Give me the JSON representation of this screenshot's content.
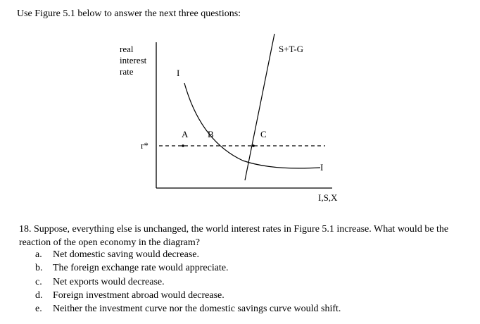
{
  "intro": "Use Figure 5.1 below to answer the next three questions:",
  "figure": {
    "y_axis_label": [
      "real",
      "interest",
      "rate"
    ],
    "x_axis_label": "I,S,X",
    "investment_label_top": "I",
    "investment_label_right": "I",
    "savings_label": "S+T-G",
    "rate_label": "r*",
    "points": [
      "A",
      "B",
      "C"
    ]
  },
  "question": {
    "text": "18. Suppose, everything else is unchanged, the world interest rates in Figure 5.1 increase. What would be the reaction of the open economy in the diagram?",
    "options": [
      {
        "letter": "a.",
        "text": "Net domestic saving would decrease."
      },
      {
        "letter": "b.",
        "text": "The foreign exchange rate would appreciate."
      },
      {
        "letter": "c.",
        "text": "Net exports would decrease."
      },
      {
        "letter": "d.",
        "text": "Foreign investment abroad would decrease."
      },
      {
        "letter": "e.",
        "text": "Neither the investment curve nor the domestic savings curve would shift."
      }
    ]
  }
}
